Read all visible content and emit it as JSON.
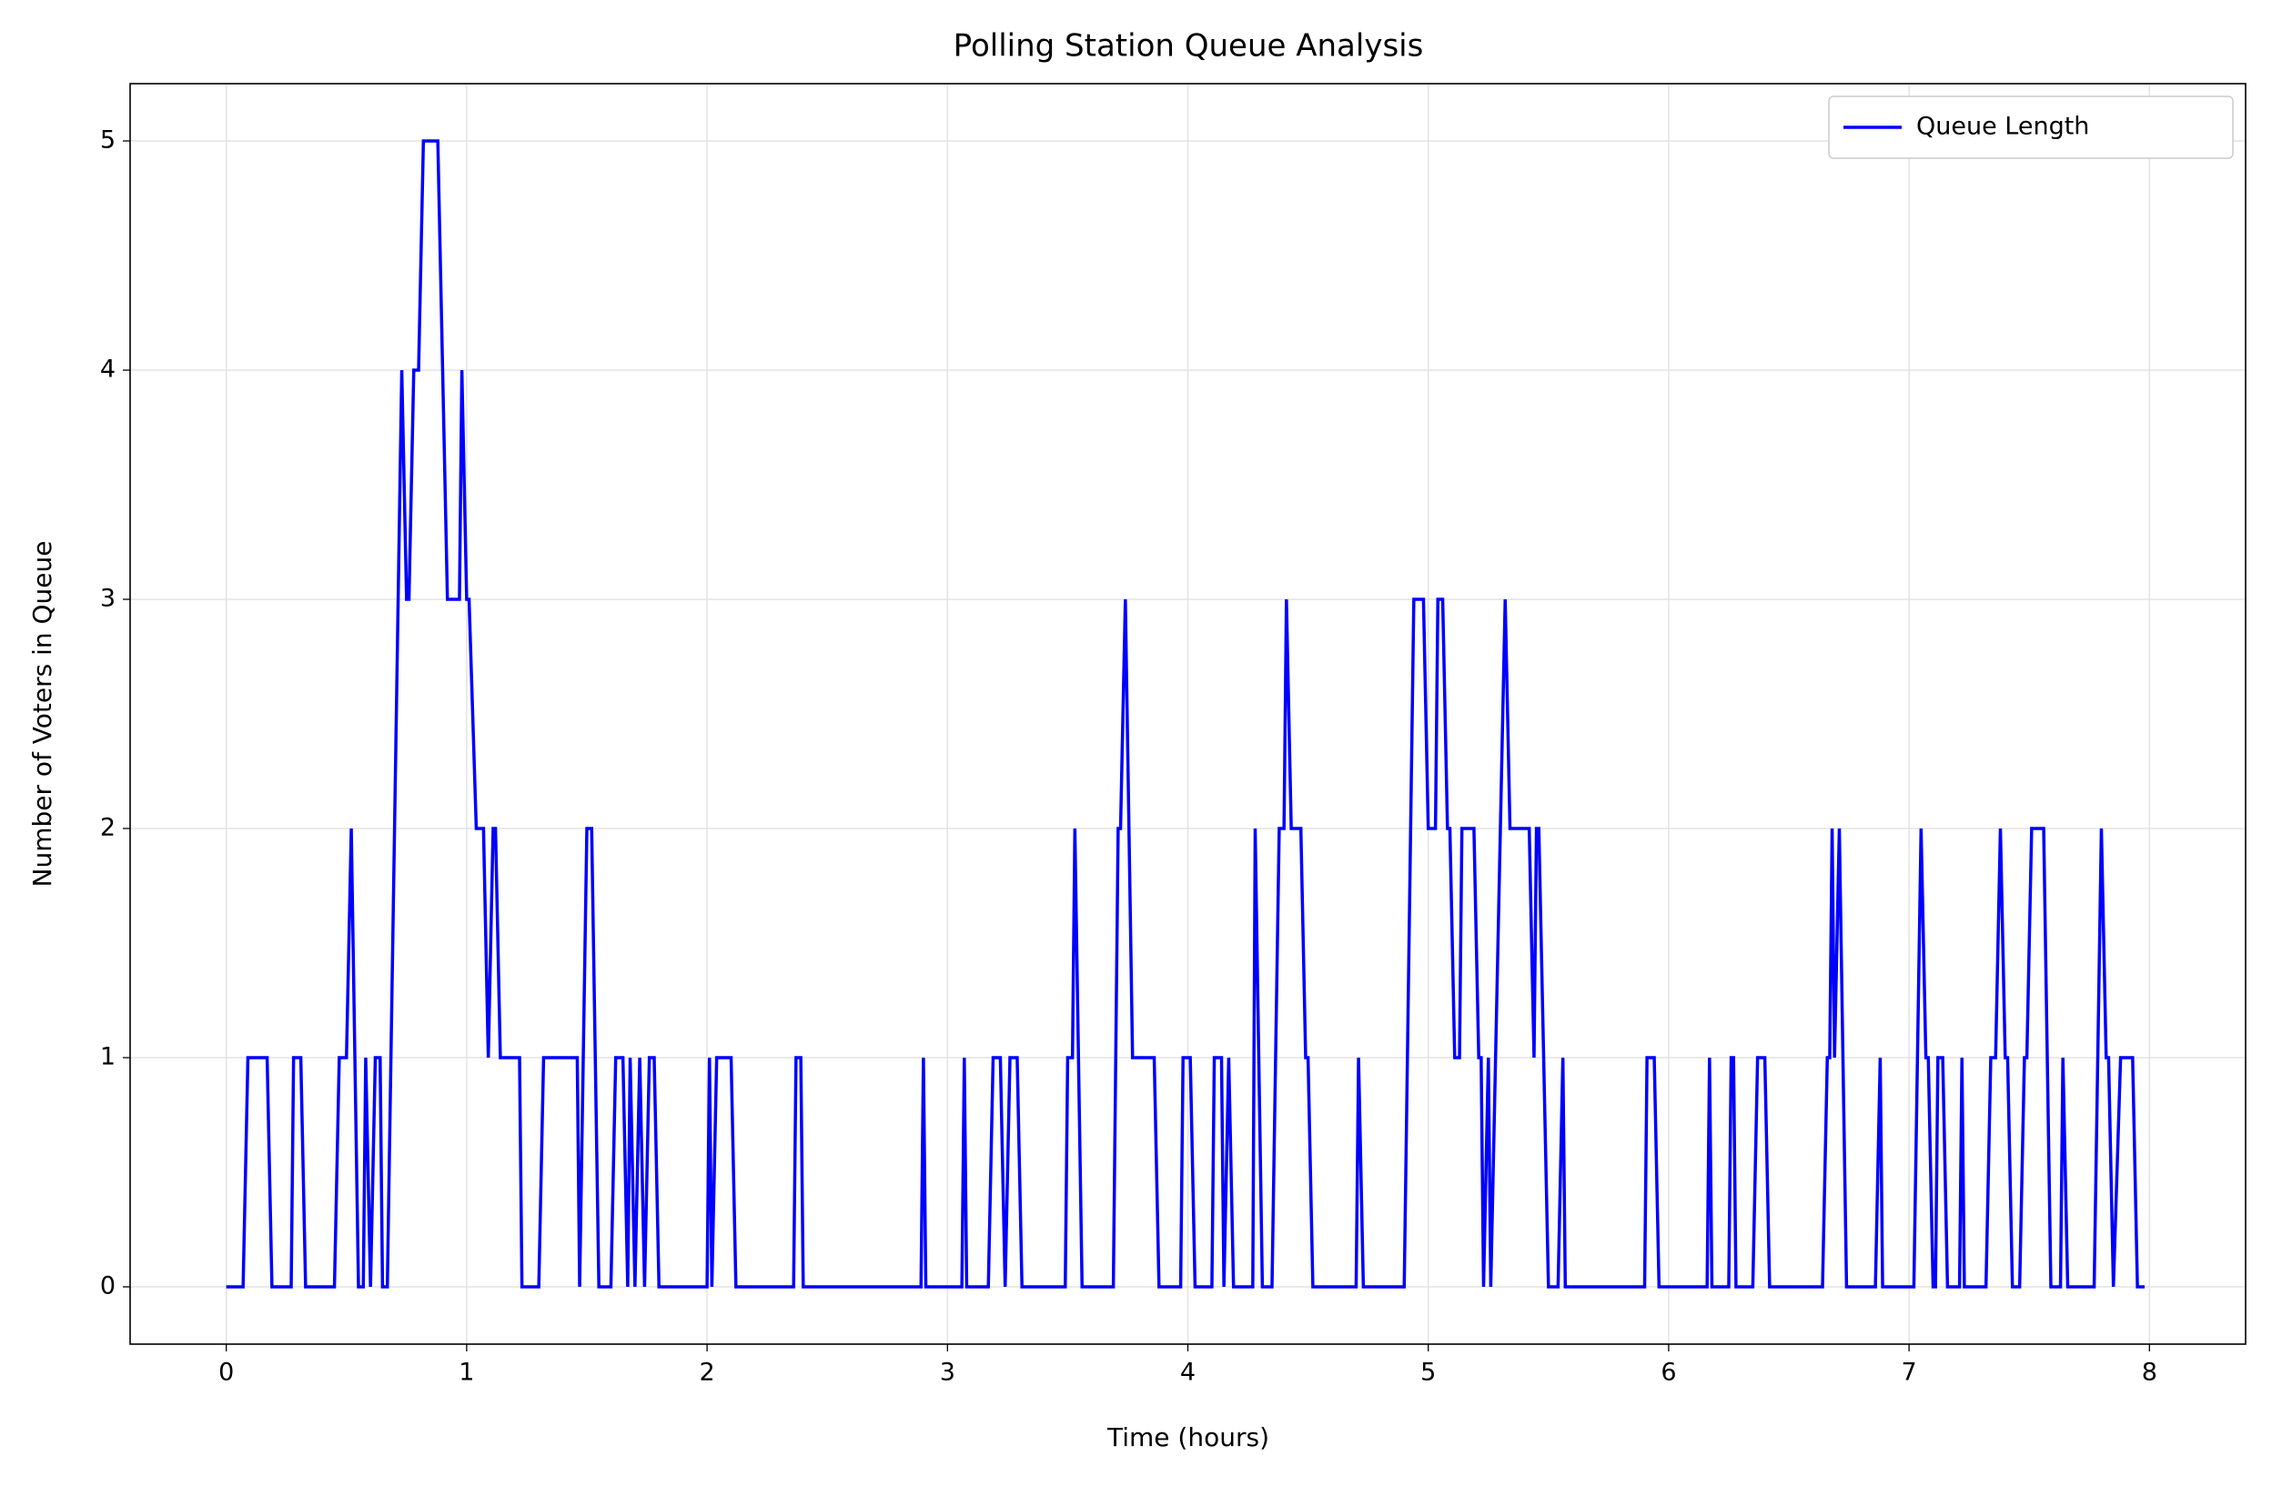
{
  "chart_data": {
    "type": "line",
    "title": "Polling Station Queue Analysis",
    "x_label": "Time (hours)",
    "y_label": "Number of Voters in Queue",
    "x": [
      0,
      0.07,
      0.09,
      0.17,
      0.19,
      0.27,
      0.28,
      0.31,
      0.33,
      0.45,
      0.47,
      0.5,
      0.52,
      0.55,
      0.57,
      0.58,
      0.6,
      0.62,
      0.64,
      0.65,
      0.67,
      0.73,
      0.75,
      0.76,
      0.78,
      0.8,
      0.82,
      0.88,
      0.92,
      0.97,
      0.98,
      1.0,
      1.01,
      1.04,
      1.07,
      1.09,
      1.11,
      1.12,
      1.14,
      1.22,
      1.23,
      1.3,
      1.32,
      1.46,
      1.47,
      1.5,
      1.52,
      1.55,
      1.6,
      1.62,
      1.65,
      1.67,
      1.68,
      1.7,
      1.72,
      1.74,
      1.76,
      1.78,
      1.8,
      2.0,
      2.01,
      2.02,
      2.04,
      2.1,
      2.12,
      2.36,
      2.37,
      2.39,
      2.4,
      2.89,
      2.9,
      2.91,
      3.06,
      3.07,
      3.08,
      3.17,
      3.19,
      3.22,
      3.24,
      3.26,
      3.29,
      3.31,
      3.49,
      3.5,
      3.52,
      3.53,
      3.56,
      3.69,
      3.71,
      3.72,
      3.74,
      3.77,
      3.86,
      3.88,
      3.97,
      3.98,
      4.01,
      4.03,
      4.1,
      4.11,
      4.14,
      4.15,
      4.17,
      4.19,
      4.27,
      4.28,
      4.31,
      4.35,
      4.38,
      4.4,
      4.41,
      4.43,
      4.47,
      4.49,
      4.5,
      4.52,
      4.7,
      4.71,
      4.73,
      4.9,
      4.94,
      4.98,
      5.0,
      5.03,
      5.04,
      5.06,
      5.08,
      5.09,
      5.11,
      5.13,
      5.14,
      5.19,
      5.21,
      5.22,
      5.23,
      5.25,
      5.26,
      5.32,
      5.34,
      5.42,
      5.44,
      5.45,
      5.46,
      5.5,
      5.54,
      5.56,
      5.57,
      5.9,
      5.91,
      5.94,
      5.96,
      6.16,
      6.17,
      6.18,
      6.25,
      6.26,
      6.27,
      6.28,
      6.35,
      6.37,
      6.4,
      6.42,
      6.64,
      6.66,
      6.67,
      6.68,
      6.69,
      6.71,
      6.74,
      6.86,
      6.88,
      6.89,
      7.02,
      7.05,
      7.07,
      7.08,
      7.1,
      7.11,
      7.12,
      7.14,
      7.16,
      7.21,
      7.22,
      7.23,
      7.32,
      7.34,
      7.36,
      7.38,
      7.4,
      7.41,
      7.43,
      7.46,
      7.48,
      7.49,
      7.51,
      7.56,
      7.59,
      7.63,
      7.64,
      7.66,
      7.77,
      7.8,
      7.82,
      7.83,
      7.85,
      7.88,
      7.93,
      7.95,
      7.98
    ],
    "series": [
      {
        "name": "Queue Length",
        "color": "#0000ff",
        "values": [
          0,
          0,
          1,
          1,
          0,
          0,
          1,
          1,
          0,
          0,
          1,
          1,
          2,
          0,
          0,
          1,
          0,
          1,
          1,
          0,
          0,
          4,
          3,
          3,
          4,
          4,
          5,
          5,
          3,
          3,
          4,
          3,
          3,
          2,
          2,
          1,
          2,
          2,
          1,
          1,
          0,
          0,
          1,
          1,
          0,
          2,
          2,
          0,
          0,
          1,
          1,
          0,
          1,
          0,
          1,
          0,
          1,
          1,
          0,
          0,
          1,
          0,
          1,
          1,
          0,
          0,
          1,
          1,
          0,
          0,
          1,
          0,
          0,
          1,
          0,
          0,
          1,
          1,
          0,
          1,
          1,
          0,
          0,
          1,
          1,
          2,
          0,
          0,
          2,
          2,
          3,
          1,
          1,
          0,
          0,
          1,
          1,
          0,
          0,
          1,
          1,
          0,
          1,
          0,
          0,
          2,
          0,
          0,
          2,
          2,
          3,
          2,
          2,
          1,
          1,
          0,
          0,
          1,
          0,
          0,
          3,
          3,
          2,
          2,
          3,
          3,
          2,
          2,
          1,
          1,
          2,
          2,
          1,
          1,
          0,
          1,
          0,
          3,
          2,
          2,
          1,
          2,
          2,
          0,
          0,
          1,
          0,
          0,
          1,
          1,
          0,
          0,
          1,
          0,
          0,
          1,
          1,
          0,
          0,
          1,
          1,
          0,
          0,
          1,
          1,
          2,
          1,
          2,
          0,
          0,
          1,
          0,
          0,
          2,
          1,
          1,
          0,
          0,
          1,
          1,
          0,
          0,
          1,
          0,
          0,
          1,
          1,
          2,
          1,
          1,
          0,
          0,
          1,
          1,
          2,
          2,
          0,
          0,
          1,
          0,
          0,
          2,
          1,
          1,
          0,
          1,
          1,
          0,
          0
        ]
      }
    ],
    "xlim": [
      -0.4,
      8.4
    ],
    "ylim": [
      -0.25,
      5.25
    ],
    "xticks": [
      0,
      1,
      2,
      3,
      4,
      5,
      6,
      7,
      8
    ],
    "yticks": [
      0,
      1,
      2,
      3,
      4,
      5
    ],
    "grid": true,
    "legend": "upper right"
  }
}
